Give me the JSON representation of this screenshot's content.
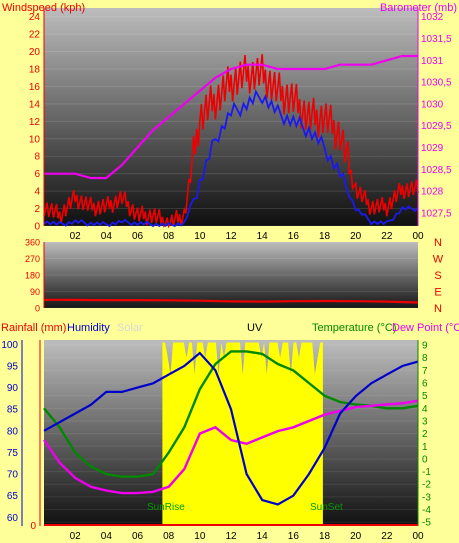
{
  "colors": {
    "background": "#ffff99",
    "windspeed": "#ee0000",
    "barometer": "#ee00ee",
    "gust": "#1a1aee",
    "direction": "#ee0000",
    "rainfall": "#ee0000",
    "humidity": "#0000cc",
    "solar": "#ffff00",
    "temperature": "#008800",
    "dewpoint": "#ee00ee"
  },
  "top_chart": {
    "left_label": "Windspeed (kph)",
    "right_label": "Barometer (mb)",
    "left_ticks": [
      "0",
      "2",
      "4",
      "6",
      "8",
      "10",
      "12",
      "14",
      "16",
      "18",
      "20",
      "22",
      "24"
    ],
    "right_ticks": [
      "1027,5",
      "1028",
      "1028,5",
      "1029",
      "1029,5",
      "1030",
      "1030,5",
      "1031",
      "1031,5",
      "1032"
    ],
    "x_ticks": [
      "02",
      "04",
      "06",
      "08",
      "10",
      "12",
      "14",
      "16",
      "18",
      "20",
      "22",
      "00"
    ]
  },
  "mid_chart": {
    "left_ticks": [
      "0",
      "90",
      "180",
      "270",
      "360"
    ],
    "compass": [
      "N",
      "W",
      "S",
      "E",
      "N"
    ]
  },
  "bottom_chart": {
    "labels": {
      "rainfall": "Rainfall (mm)",
      "humidity": "Humidity",
      "solar": "Solar",
      "uv": "UV",
      "temperature": "Temperature (°C)",
      "dewpoint": "Dew Point (°C)"
    },
    "left_ticks": [
      "0"
    ],
    "humidity_ticks": [
      "60",
      "65",
      "70",
      "75",
      "80",
      "85",
      "90",
      "95",
      "100"
    ],
    "right_ticks": [
      "-5",
      "-4",
      "-3",
      "-2",
      "-1",
      "0",
      "1",
      "2",
      "3",
      "4",
      "5",
      "6",
      "7",
      "8",
      "9"
    ],
    "x_ticks": [
      "02",
      "04",
      "06",
      "08",
      "10",
      "12",
      "14",
      "16",
      "18",
      "20",
      "22",
      "00"
    ],
    "sunrise_label": "SunRise",
    "sunset_label": "SunSet"
  },
  "chart_data": [
    {
      "type": "line",
      "x": [
        0,
        1,
        2,
        3,
        4,
        5,
        6,
        7,
        8,
        9,
        10,
        11,
        12,
        13,
        14,
        15,
        16,
        17,
        18,
        19,
        20,
        21,
        22,
        23,
        24
      ],
      "series": [
        {
          "name": "Windspeed (kph)",
          "axis": "left",
          "values": [
            2,
            1,
            3,
            2,
            2,
            3,
            1,
            1,
            0,
            1,
            12,
            14,
            16,
            17,
            17,
            15,
            14,
            12,
            12,
            10,
            4,
            2,
            2,
            4,
            4
          ]
        },
        {
          "name": "Barometer (mb)",
          "axis": "right",
          "values": [
            1028.4,
            1028.4,
            1028.4,
            1028.3,
            1028.3,
            1028.6,
            1029.0,
            1029.4,
            1029.7,
            1030.0,
            1030.3,
            1030.6,
            1030.8,
            1030.9,
            1030.9,
            1030.8,
            1030.8,
            1030.8,
            1030.8,
            1030.9,
            1030.9,
            1030.9,
            1031.0,
            1031.1,
            1031.1
          ]
        },
        {
          "values": [
            0.5,
            0.2,
            0.5,
            0.3,
            0.2,
            0.5,
            0.3,
            0.2,
            0.1,
            0.3,
            5,
            10,
            13,
            14,
            15,
            13,
            12,
            11,
            9,
            6,
            2,
            0.5,
            0.3,
            2,
            2
          ]
        }
      ]
    },
    {
      "type": "line",
      "x": [
        0,
        2,
        4,
        6,
        8,
        10,
        12,
        14,
        16,
        18,
        20,
        22,
        24
      ],
      "series": [
        {
          "values": [
            45,
            44,
            43,
            43,
            42,
            40,
            36,
            35,
            37,
            38,
            37,
            35,
            30
          ]
        }
      ]
    },
    {
      "type": "line",
      "x": [
        0,
        1,
        2,
        3,
        4,
        5,
        6,
        7,
        8,
        9,
        10,
        11,
        12,
        13,
        14,
        15,
        16,
        17,
        18,
        19,
        20,
        21,
        22,
        23,
        24
      ],
      "series": [
        {
          "name": "Humidity",
          "axis": "humidity",
          "values": [
            80,
            82,
            84,
            86,
            89,
            89,
            90,
            91,
            93,
            95,
            98,
            94,
            85,
            70,
            64,
            63,
            65,
            70,
            76,
            84,
            88,
            91,
            93,
            95,
            96
          ]
        },
        {
          "name": "Temperature (°C)",
          "axis": "temp",
          "values": [
            4,
            2.5,
            0.5,
            -0.6,
            -1.2,
            -1.4,
            -1.4,
            -1.2,
            0.5,
            2.5,
            5.5,
            7.5,
            8.5,
            8.5,
            8.3,
            7.5,
            7.0,
            6.0,
            5.0,
            4.5,
            4.3,
            4.2,
            4.0,
            4.0,
            4.2
          ]
        },
        {
          "name": "Dew Point (°C)",
          "axis": "temp",
          "values": [
            1.5,
            -0.3,
            -1.5,
            -2.2,
            -2.5,
            -2.7,
            -2.7,
            -2.6,
            -2.2,
            -0.8,
            2.0,
            2.5,
            1.5,
            1.2,
            1.7,
            2.2,
            2.5,
            3.0,
            3.5,
            3.8,
            4.1,
            4.2,
            4.3,
            4.4,
            4.6
          ]
        },
        {
          "name": "Solar",
          "axis": "temp",
          "values": [
            null,
            null,
            null,
            null,
            null,
            null,
            null,
            9,
            9,
            9,
            9,
            9,
            9,
            9,
            9,
            9,
            9,
            9,
            null,
            null,
            null,
            null,
            null,
            null,
            null
          ]
        }
      ]
    }
  ]
}
